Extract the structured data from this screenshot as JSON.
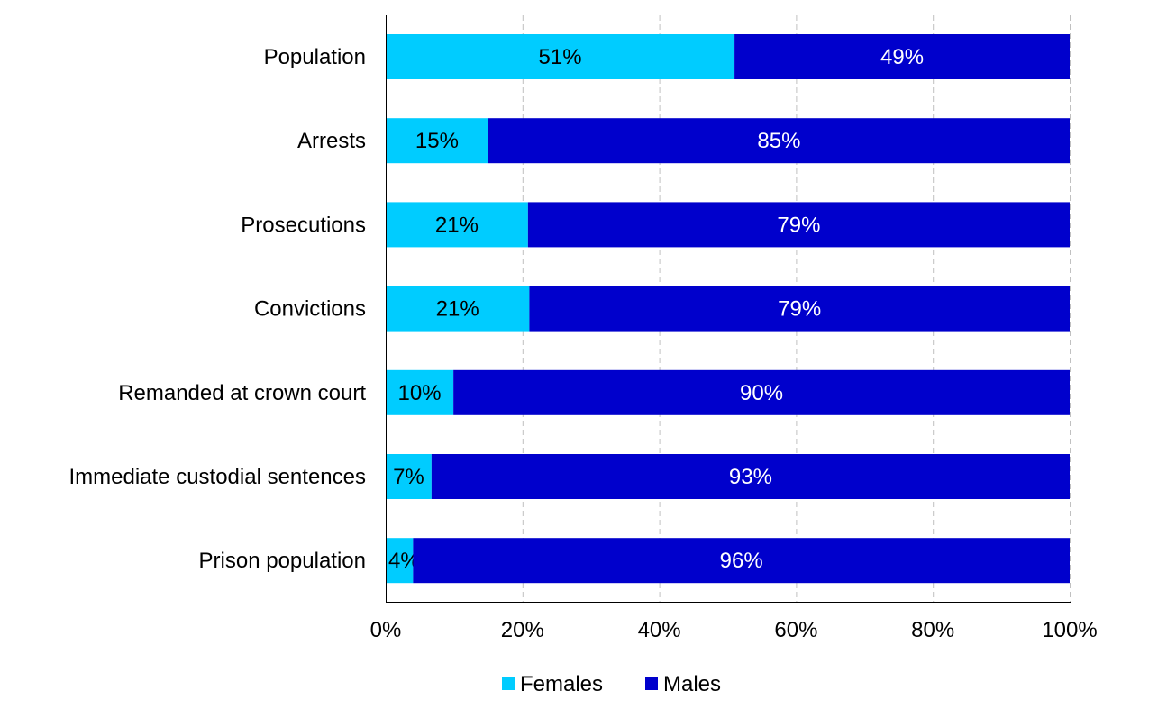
{
  "chart_data": {
    "type": "bar",
    "orientation": "horizontal",
    "stacked": true,
    "categories": [
      "Population",
      "Arrests",
      "Prosecutions",
      "Convictions",
      "Remanded at crown court",
      "Immediate custodial sentences",
      "Prison population"
    ],
    "series": [
      {
        "name": "Females",
        "color": "#00ccff",
        "label_color": "#000000",
        "values": [
          51,
          15,
          20.8,
          21,
          9.9,
          6.7,
          4
        ],
        "labels": [
          "51%",
          "15%",
          "21%",
          "21%",
          "10%",
          "7%",
          "4%"
        ]
      },
      {
        "name": "Males",
        "color": "#0000cc",
        "label_color": "#ffffff",
        "values": [
          49,
          85,
          79.2,
          79,
          90.1,
          93.3,
          96
        ],
        "labels": [
          "49%",
          "85%",
          "79%",
          "79%",
          "90%",
          "93%",
          "96%"
        ]
      }
    ],
    "xlim": [
      0,
      100
    ],
    "xticks": [
      "0%",
      "20%",
      "40%",
      "60%",
      "80%",
      "100%"
    ],
    "grid": "vertical dashed",
    "legend": "bottom",
    "title": "",
    "xlabel": "",
    "ylabel": ""
  }
}
